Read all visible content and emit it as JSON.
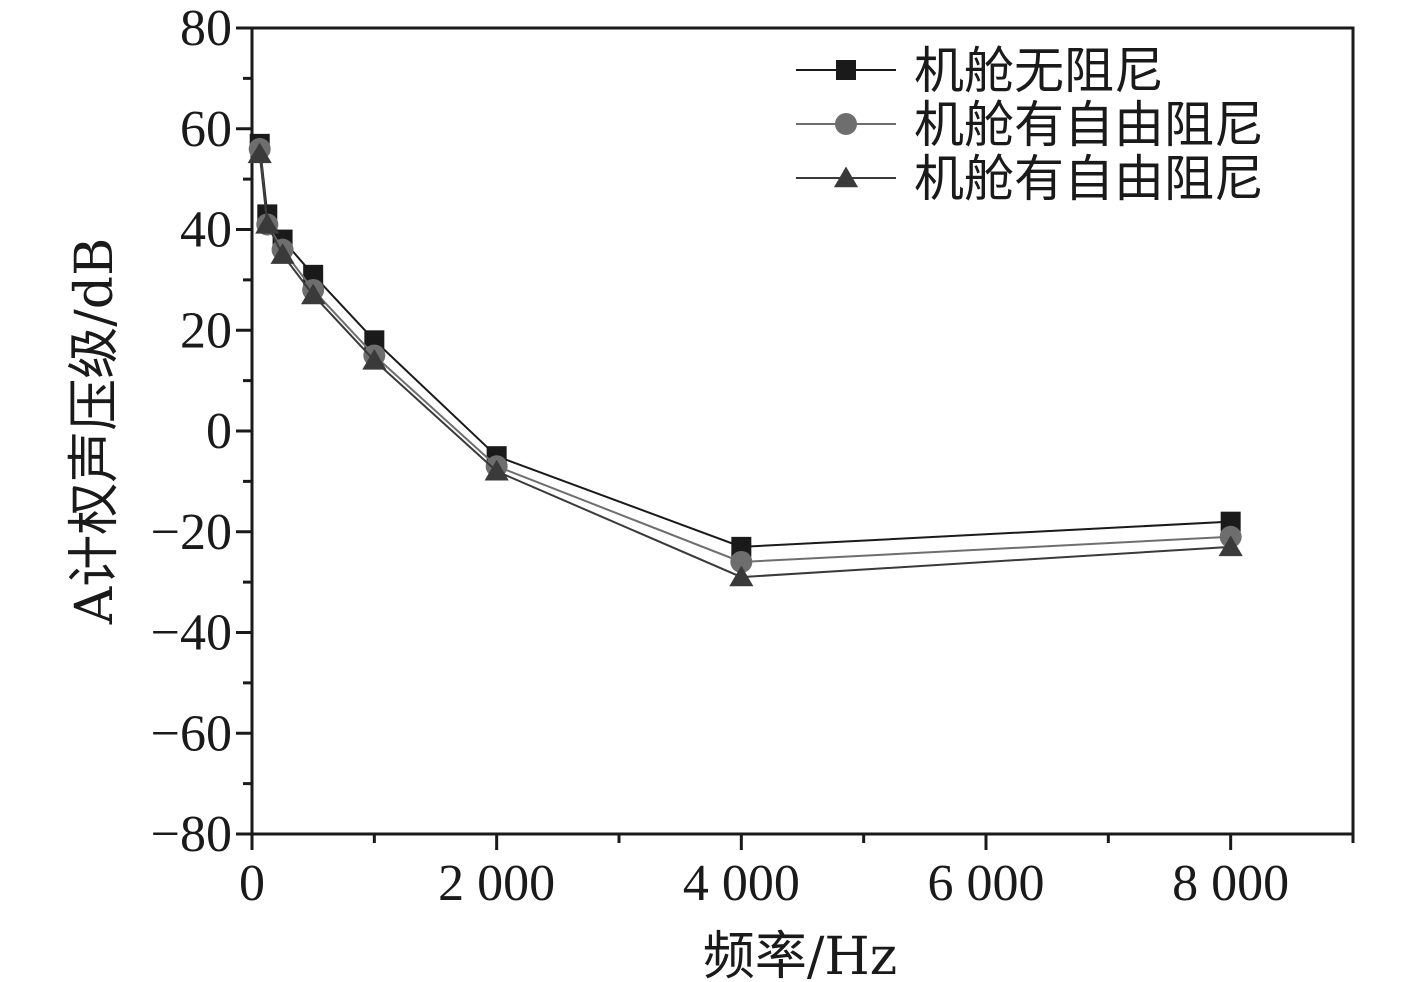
{
  "chart_data": {
    "type": "line",
    "xlabel": "频率/Hz",
    "ylabel": "A计权声压级/dB",
    "xlim": [
      0,
      9000
    ],
    "ylim": [
      -80,
      80
    ],
    "xticks": [
      {
        "value": 0,
        "label": "0"
      },
      {
        "value": 2000,
        "label": "2 000"
      },
      {
        "value": 4000,
        "label": "4 000"
      },
      {
        "value": 6000,
        "label": "6 000"
      },
      {
        "value": 8000,
        "label": "8 000"
      }
    ],
    "yticks": [
      {
        "value": 80,
        "label": "80"
      },
      {
        "value": 60,
        "label": "60"
      },
      {
        "value": 40,
        "label": "40"
      },
      {
        "value": 20,
        "label": "20"
      },
      {
        "value": 0,
        "label": "0"
      },
      {
        "value": -20,
        "label": "−20"
      },
      {
        "value": -40,
        "label": "−40"
      },
      {
        "value": -60,
        "label": "−60"
      },
      {
        "value": -80,
        "label": "−80"
      }
    ],
    "x": [
      63,
      125,
      250,
      500,
      1000,
      2000,
      4000,
      8000
    ],
    "series": [
      {
        "name": "机舱无阻尼",
        "marker": "square",
        "color": "#1a1a1a",
        "values": [
          57,
          43,
          38,
          31,
          18,
          -5,
          -23,
          -18
        ]
      },
      {
        "name": "机舱有自由阻尼",
        "marker": "circle",
        "color": "#6e6e6e",
        "values": [
          56,
          41,
          36,
          28,
          15,
          -7,
          -26,
          -21
        ]
      },
      {
        "name": "机舱有自由阻尼",
        "marker": "triangle",
        "color": "#3a3a3a",
        "values": [
          55,
          41,
          35,
          27,
          14,
          -8,
          -29,
          -23
        ]
      }
    ],
    "legend_position": "top-right",
    "grid": false
  }
}
